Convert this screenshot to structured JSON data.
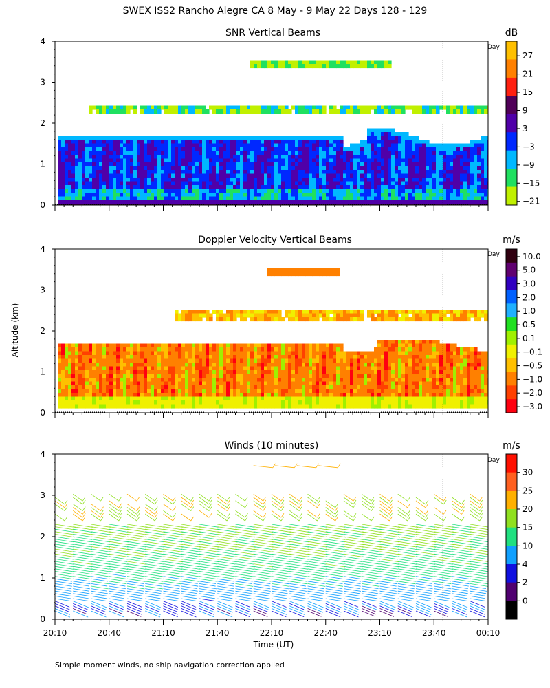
{
  "figure": {
    "title": "SWEX ISS2 Rancho Alegre CA   8 May -  9 May 22 Days 128 - 129",
    "ylabel": "Altitude (km)",
    "xlabel": "Time (UT)",
    "footnote": "Simple moment winds, no ship navigation correction applied",
    "day_marker": "Day",
    "time_ticks": [
      "20:10",
      "20:40",
      "21:10",
      "21:40",
      "22:10",
      "22:40",
      "23:10",
      "23:40",
      "00:10"
    ],
    "alt_ticks": [
      "0",
      "1",
      "2",
      "3",
      "4"
    ]
  },
  "chart_data": [
    {
      "type": "heatmap",
      "title": "SNR Vertical Beams",
      "colorbar_unit": "dB",
      "colorbar_labels": [
        "27",
        "21",
        "15",
        "9",
        "3",
        "−3",
        "−9",
        "−15",
        "−21"
      ],
      "colorbar_colors": [
        "#ffc000",
        "#ff8000",
        "#ff2010",
        "#500058",
        "#5000a8",
        "#0028ff",
        "#00b8ff",
        "#20e060",
        "#c0f000"
      ],
      "xlim": [
        20.1667,
        24.1667
      ],
      "ylim": [
        0,
        4
      ],
      "features": [
        {
          "name": "boundary-layer",
          "alt_range_km": [
            0.15,
            1.75
          ]
        },
        {
          "name": "cloud-layer",
          "alt_range_km": [
            2.25,
            2.55
          ]
        },
        {
          "name": "upper-layer",
          "alt_range_km": [
            3.35,
            3.55
          ]
        }
      ]
    },
    {
      "type": "heatmap",
      "title": "Doppler Velocity Vertical Beams",
      "colorbar_unit": "m/s",
      "colorbar_labels": [
        "10.0",
        "5.0",
        "3.0",
        "2.0",
        "1.0",
        "0.5",
        "0.1",
        "−0.1",
        "−0.5",
        "−1.0",
        "−2.0",
        "−3.0"
      ],
      "colorbar_colors": [
        "#300010",
        "#600070",
        "#3000c0",
        "#0060ff",
        "#20b0ff",
        "#20e020",
        "#a0f000",
        "#f0f000",
        "#ffc000",
        "#ff8000",
        "#ff4000",
        "#ff0010"
      ],
      "xlim": [
        20.1667,
        24.1667
      ],
      "ylim": [
        0,
        4
      ],
      "features": [
        {
          "name": "boundary-layer",
          "alt_range_km": [
            0.15,
            1.75
          ]
        },
        {
          "name": "cloud-layer",
          "alt_range_km": [
            2.3,
            2.55
          ]
        },
        {
          "name": "upper-layer",
          "alt_range_km": [
            3.4,
            3.55
          ]
        }
      ]
    },
    {
      "type": "scatter",
      "title": "Winds (10 minutes)",
      "colorbar_unit": "m/s",
      "colorbar_labels": [
        "30",
        "25",
        "20",
        "15",
        "10",
        "4",
        "2",
        "0"
      ],
      "colorbar_colors": [
        "#ff1000",
        "#ff6020",
        "#ffb000",
        "#90e020",
        "#20e080",
        "#10a0ff",
        "#1010e0",
        "#500070",
        "#000000"
      ],
      "xlim": [
        20.1667,
        24.1667
      ],
      "ylim": [
        0,
        4
      ],
      "profile_times_hr": [
        20.1667,
        20.3333,
        20.5,
        20.6667,
        20.8333,
        21.0,
        21.1667,
        21.3333,
        21.5,
        21.6667,
        21.8333,
        22.0,
        22.1667,
        22.3333,
        22.5,
        22.6667,
        22.8333,
        23.0,
        23.1667,
        23.3333,
        23.5,
        23.6667,
        23.8333,
        24.0
      ],
      "wind_speed_by_altitude": [
        {
          "alt_km": 0.25,
          "speed_ms": 3
        },
        {
          "alt_km": 0.75,
          "speed_ms": 8
        },
        {
          "alt_km": 1.25,
          "speed_ms": 13
        },
        {
          "alt_km": 1.75,
          "speed_ms": 15
        },
        {
          "alt_km": 2.25,
          "speed_ms": 16
        },
        {
          "alt_km": 2.75,
          "speed_ms": 20
        },
        {
          "alt_km": 3.7,
          "speed_ms": 21
        }
      ]
    }
  ]
}
